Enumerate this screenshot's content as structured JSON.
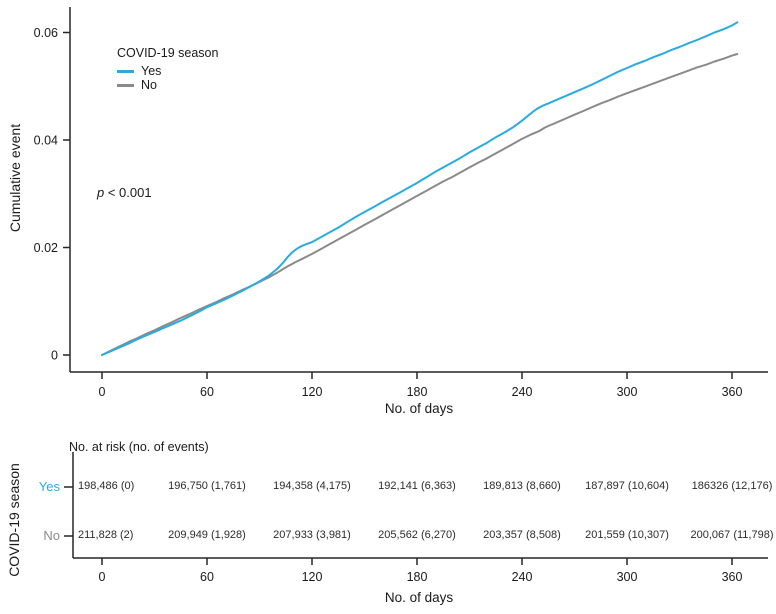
{
  "figure": {
    "p_italic": "p",
    "p_rest": " < 0.001",
    "legend": {
      "title": "COVID-19 season",
      "items": [
        {
          "label": "Yes",
          "color": "#29abe2"
        },
        {
          "label": "No",
          "color": "#8a8a8a"
        }
      ]
    }
  },
  "chart_data": {
    "type": "line",
    "title": "",
    "xlabel": "No. of days",
    "ylabel": "Cumulative event",
    "annotation": "p < 0.001",
    "legend_position": "top-left-inside",
    "grid": false,
    "xlim": [
      0,
      365
    ],
    "ylim": [
      0,
      0.063
    ],
    "xticks": [
      0,
      60,
      120,
      180,
      240,
      300,
      360
    ],
    "yticks": [
      0,
      0.02,
      0.04,
      0.06
    ],
    "ytick_labels": [
      "0",
      "0.02",
      "0.04",
      "0.06"
    ],
    "series": [
      {
        "name": "Yes",
        "color": "#29abe2",
        "points": [
          [
            0,
            0
          ],
          [
            5,
            0.0007
          ],
          [
            10,
            0.0014
          ],
          [
            15,
            0.0021
          ],
          [
            20,
            0.0029
          ],
          [
            25,
            0.0036
          ],
          [
            30,
            0.0043
          ],
          [
            35,
            0.005
          ],
          [
            40,
            0.0057
          ],
          [
            45,
            0.0064
          ],
          [
            50,
            0.0072
          ],
          [
            55,
            0.008
          ],
          [
            60,
            0.0089
          ],
          [
            65,
            0.0096
          ],
          [
            70,
            0.0103
          ],
          [
            75,
            0.0111
          ],
          [
            80,
            0.0119
          ],
          [
            85,
            0.0128
          ],
          [
            90,
            0.0137
          ],
          [
            95,
            0.0147
          ],
          [
            100,
            0.016
          ],
          [
            103,
            0.017
          ],
          [
            106,
            0.0182
          ],
          [
            109,
            0.0192
          ],
          [
            112,
            0.0199
          ],
          [
            115,
            0.0204
          ],
          [
            120,
            0.021
          ],
          [
            125,
            0.0219
          ],
          [
            130,
            0.0228
          ],
          [
            135,
            0.0237
          ],
          [
            140,
            0.0247
          ],
          [
            145,
            0.0257
          ],
          [
            150,
            0.0266
          ],
          [
            155,
            0.0275
          ],
          [
            160,
            0.0284
          ],
          [
            165,
            0.0293
          ],
          [
            170,
            0.0302
          ],
          [
            175,
            0.0311
          ],
          [
            180,
            0.032
          ],
          [
            185,
            0.033
          ],
          [
            190,
            0.034
          ],
          [
            195,
            0.0349
          ],
          [
            200,
            0.0358
          ],
          [
            205,
            0.0367
          ],
          [
            210,
            0.0377
          ],
          [
            215,
            0.0386
          ],
          [
            220,
            0.0395
          ],
          [
            225,
            0.0405
          ],
          [
            230,
            0.0414
          ],
          [
            235,
            0.0424
          ],
          [
            240,
            0.0436
          ],
          [
            243,
            0.0444
          ],
          [
            246,
            0.0452
          ],
          [
            249,
            0.0459
          ],
          [
            252,
            0.0464
          ],
          [
            255,
            0.0468
          ],
          [
            260,
            0.0475
          ],
          [
            265,
            0.0482
          ],
          [
            270,
            0.0489
          ],
          [
            275,
            0.0496
          ],
          [
            280,
            0.0503
          ],
          [
            285,
            0.0511
          ],
          [
            290,
            0.0519
          ],
          [
            295,
            0.0527
          ],
          [
            300,
            0.0534
          ],
          [
            305,
            0.0541
          ],
          [
            310,
            0.0547
          ],
          [
            315,
            0.0554
          ],
          [
            320,
            0.056
          ],
          [
            325,
            0.0567
          ],
          [
            330,
            0.0573
          ],
          [
            335,
            0.058
          ],
          [
            340,
            0.0586
          ],
          [
            345,
            0.0593
          ],
          [
            350,
            0.06
          ],
          [
            355,
            0.0606
          ],
          [
            360,
            0.0613
          ],
          [
            363,
            0.0619
          ]
        ]
      },
      {
        "name": "No",
        "color": "#8a8a8a",
        "points": [
          [
            0,
            0
          ],
          [
            5,
            0.0008
          ],
          [
            10,
            0.0016
          ],
          [
            15,
            0.0024
          ],
          [
            20,
            0.0031
          ],
          [
            25,
            0.0039
          ],
          [
            30,
            0.0046
          ],
          [
            35,
            0.0054
          ],
          [
            40,
            0.0061
          ],
          [
            45,
            0.0069
          ],
          [
            50,
            0.0076
          ],
          [
            55,
            0.0084
          ],
          [
            60,
            0.0091
          ],
          [
            65,
            0.0098
          ],
          [
            70,
            0.0106
          ],
          [
            75,
            0.0113
          ],
          [
            80,
            0.0121
          ],
          [
            85,
            0.0128
          ],
          [
            90,
            0.0136
          ],
          [
            95,
            0.0144
          ],
          [
            100,
            0.0153
          ],
          [
            105,
            0.0163
          ],
          [
            110,
            0.0172
          ],
          [
            115,
            0.018
          ],
          [
            120,
            0.0188
          ],
          [
            125,
            0.0197
          ],
          [
            130,
            0.0206
          ],
          [
            135,
            0.0215
          ],
          [
            140,
            0.0224
          ],
          [
            145,
            0.0233
          ],
          [
            150,
            0.0242
          ],
          [
            155,
            0.0251
          ],
          [
            160,
            0.026
          ],
          [
            165,
            0.0269
          ],
          [
            170,
            0.0278
          ],
          [
            175,
            0.0287
          ],
          [
            180,
            0.0296
          ],
          [
            185,
            0.0305
          ],
          [
            190,
            0.0314
          ],
          [
            195,
            0.0323
          ],
          [
            200,
            0.0331
          ],
          [
            205,
            0.034
          ],
          [
            210,
            0.0349
          ],
          [
            215,
            0.0358
          ],
          [
            220,
            0.0366
          ],
          [
            225,
            0.0375
          ],
          [
            230,
            0.0384
          ],
          [
            235,
            0.0393
          ],
          [
            240,
            0.0402
          ],
          [
            245,
            0.041
          ],
          [
            250,
            0.0417
          ],
          [
            253,
            0.0423
          ],
          [
            255,
            0.0426
          ],
          [
            260,
            0.0433
          ],
          [
            265,
            0.044
          ],
          [
            270,
            0.0447
          ],
          [
            275,
            0.0454
          ],
          [
            280,
            0.0461
          ],
          [
            285,
            0.0468
          ],
          [
            290,
            0.0474
          ],
          [
            295,
            0.0481
          ],
          [
            300,
            0.0487
          ],
          [
            305,
            0.0493
          ],
          [
            310,
            0.0499
          ],
          [
            315,
            0.0505
          ],
          [
            320,
            0.0511
          ],
          [
            325,
            0.0517
          ],
          [
            330,
            0.0523
          ],
          [
            335,
            0.0529
          ],
          [
            340,
            0.0535
          ],
          [
            345,
            0.054
          ],
          [
            350,
            0.0546
          ],
          [
            355,
            0.0551
          ],
          [
            360,
            0.0557
          ],
          [
            363,
            0.056
          ]
        ]
      }
    ]
  },
  "risk_table": {
    "header": "No. at risk (no. of events)",
    "axis_label": "COVID-19 season",
    "xlabel": "No. of days",
    "xticks": [
      0,
      60,
      120,
      180,
      240,
      300,
      360
    ],
    "rows": [
      {
        "label": "Yes",
        "color": "#29abe2",
        "values": [
          "198,486 (0)",
          "196,750 (1,761)",
          "194,358 (4,175)",
          "192,141 (6,363)",
          "189,813 (8,660)",
          "187,897 (10,604)",
          "186326 (12,176)"
        ]
      },
      {
        "label": "No",
        "color": "#8a8a8a",
        "values": [
          "211,828 (2)",
          "209,949 (1,928)",
          "207,933 (3,981)",
          "205,562 (6,270)",
          "203,357 (8,508)",
          "201,559 (10,307)",
          "200,067 (11,798)"
        ]
      }
    ]
  }
}
